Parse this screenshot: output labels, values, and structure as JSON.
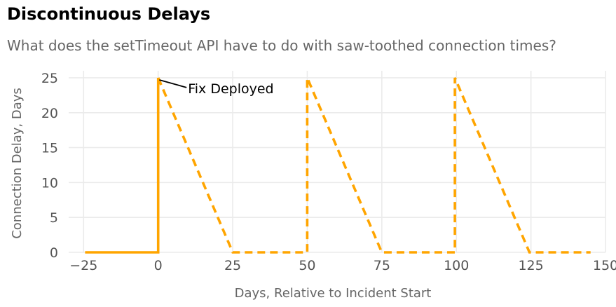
{
  "chart_data": {
    "type": "line",
    "title": "Discontinuous Delays",
    "subtitle": "What does the setTimeout API have to do with saw-toothed connection times?",
    "xlabel": "Days, Relative to Incident Start",
    "ylabel": "Connection Delay, Days",
    "xlim": [
      -30,
      150
    ],
    "ylim": [
      0,
      26
    ],
    "xticks": [
      -25,
      0,
      25,
      50,
      75,
      100,
      125,
      150
    ],
    "xtick_labels": [
      "−25",
      "0",
      "25",
      "50",
      "75",
      "100",
      "125",
      "150"
    ],
    "yticks": [
      0,
      5,
      10,
      15,
      20,
      25
    ],
    "ytick_labels": [
      "0",
      "5",
      "10",
      "15",
      "20",
      "25"
    ],
    "grid": true,
    "legend": "none",
    "color": "#FFA500",
    "series": [
      {
        "style": "solid",
        "x": [
          -24.5,
          0,
          0
        ],
        "y": [
          0,
          0,
          25
        ]
      },
      {
        "style": "dashed",
        "x": [
          0,
          25,
          50,
          50,
          75,
          99.5,
          99.5,
          124.5,
          145
        ],
        "y": [
          25,
          0,
          0,
          25,
          0,
          0,
          25,
          0,
          0
        ]
      }
    ],
    "annotations": [
      {
        "text": "Fix Deployed",
        "x": 0.4,
        "y": 24.7,
        "text_x": 10,
        "text_y": 22.8
      }
    ]
  }
}
